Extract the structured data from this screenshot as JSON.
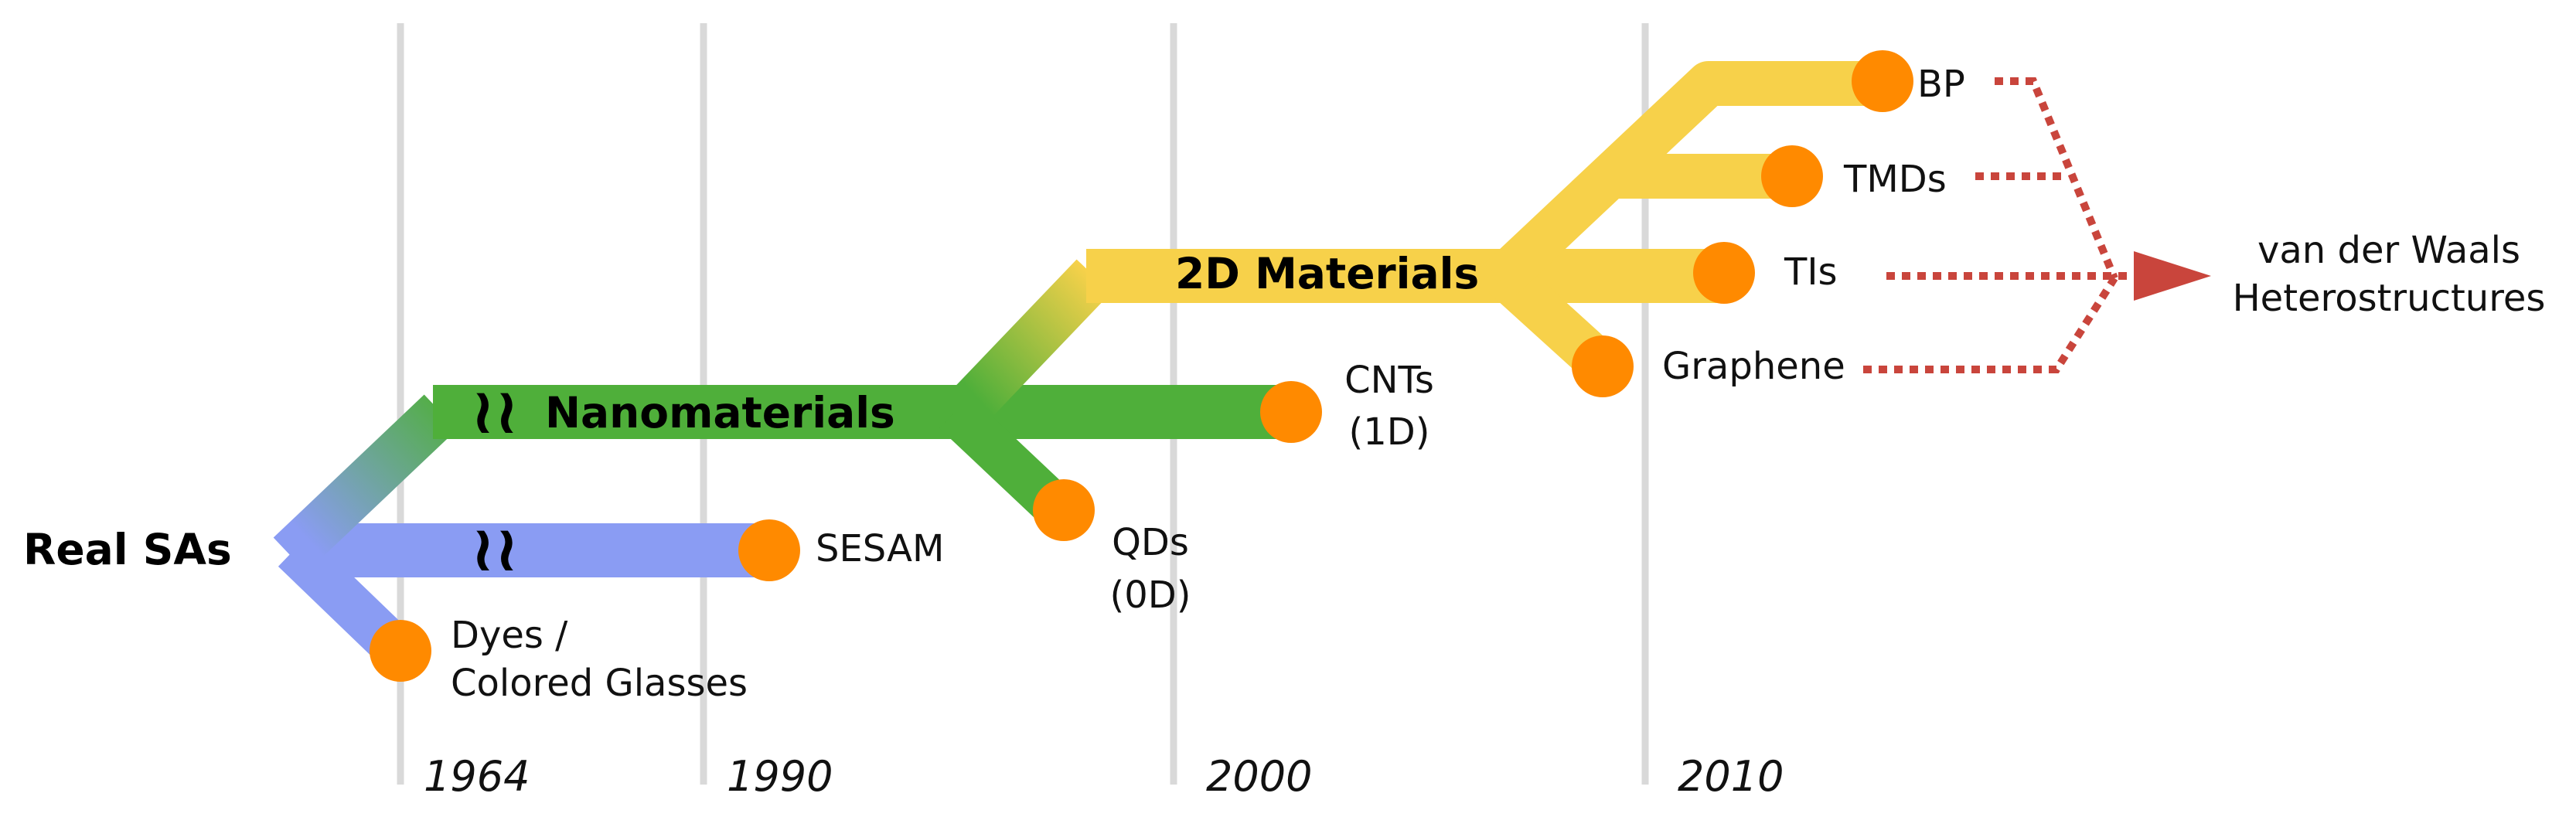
{
  "colors": {
    "real_sa_track": "#8a9cf3",
    "nano_track": "#4faf3a",
    "twod_track": "#f7d14a",
    "node": "#ff8a00",
    "year_line": "#d9d9d9",
    "dotted_arrow": "#c9453c",
    "text": "#111111"
  },
  "years": [
    "1964",
    "1990",
    "2000",
    "2010"
  ],
  "branches": {
    "real_sas": "Real SAs",
    "nanomaterials": "Nanomaterials",
    "twod_materials": "2D Materials"
  },
  "nodes": {
    "dyes_line1": "Dyes /",
    "dyes_line2": "Colored Glasses",
    "sesam": "SESAM",
    "qds_line1": "QDs",
    "qds_line2": "(0D)",
    "cnts_line1": "CNTs",
    "cnts_line2": "(1D)",
    "graphene": "Graphene",
    "tis": "TIs",
    "tmds": "TMDs",
    "bp": "BP"
  },
  "target": {
    "line1": "van der Waals",
    "line2": "Heterostructures"
  },
  "break_symbol": "≀≀"
}
